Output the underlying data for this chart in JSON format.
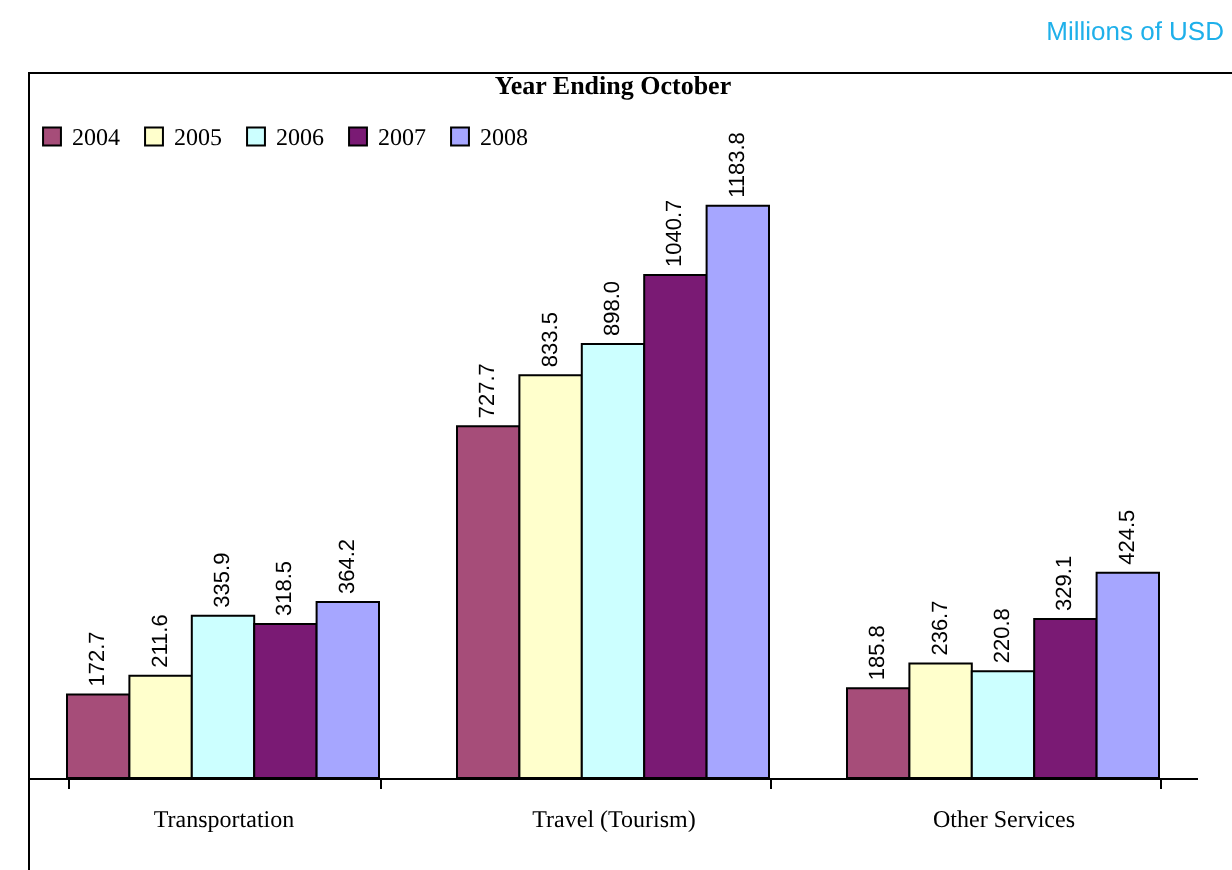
{
  "chart_data": {
    "type": "bar",
    "title": "Year Ending October",
    "annotations": [
      "Millions of USD"
    ],
    "categories": [
      "Transportation",
      "Travel (Tourism)",
      "Other Services"
    ],
    "series": [
      {
        "name": "2004",
        "color": "#a64d79",
        "values": [
          172.7,
          727.7,
          185.8
        ],
        "value_labels": [
          "172.7",
          "727.7",
          "185.8"
        ]
      },
      {
        "name": "2005",
        "color": "#ffffcc",
        "values": [
          211.6,
          833.5,
          236.7
        ],
        "value_labels": [
          "211.6",
          "833.5",
          "236.7"
        ]
      },
      {
        "name": "2006",
        "color": "#ccffff",
        "values": [
          335.9,
          898.0,
          220.8
        ],
        "value_labels": [
          "335.9",
          "898.0",
          "220.8"
        ]
      },
      {
        "name": "2007",
        "color": "#7a1a74",
        "values": [
          318.5,
          1040.7,
          329.1
        ],
        "value_labels": [
          "318.5",
          "1040.7",
          "329.1"
        ]
      },
      {
        "name": "2008",
        "color": "#a6a6ff",
        "values": [
          364.2,
          1183.8,
          424.5
        ],
        "value_labels": [
          "364.2",
          "1183.8",
          "424.5"
        ]
      }
    ],
    "legend": "top",
    "grid": false
  }
}
